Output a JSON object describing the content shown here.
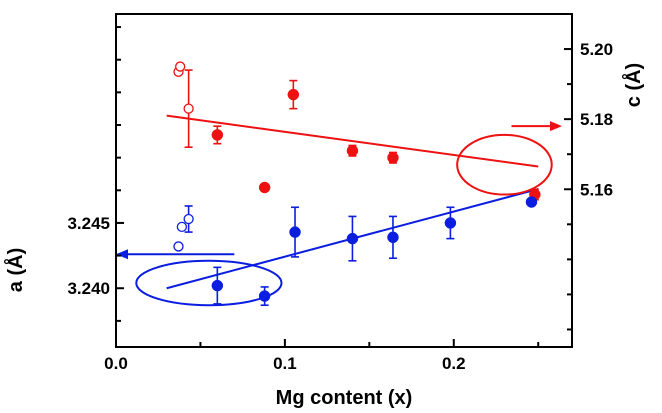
{
  "chart_data": {
    "type": "scatter",
    "title": "",
    "xlabel": "Mg content (x)",
    "ylabel_left": "a (Å)",
    "ylabel_right": "c (Å)",
    "xlim": [
      0.0,
      0.27
    ],
    "ylim_left": [
      3.2355,
      3.261
    ],
    "ylim_right": [
      5.115,
      5.21
    ],
    "x_ticks": [
      0.0,
      0.1,
      0.2
    ],
    "x_tick_labels": [
      "0.0",
      "0.1",
      "0.2"
    ],
    "y_left_ticks": [
      3.24,
      3.245
    ],
    "y_left_tick_labels": [
      "3.240",
      "3.245"
    ],
    "y_right_ticks": [
      5.16,
      5.18,
      5.2
    ],
    "y_right_tick_labels": [
      "5.16",
      "5.18",
      "5.20"
    ],
    "grid": false,
    "colors": {
      "a_series": "#0a1de0",
      "c_series": "#ee1111",
      "axis": "#000000"
    },
    "series": [
      {
        "axis": "right",
        "color": "#ee1111",
        "marker": "filled-circle",
        "points": [
          {
            "x": 0.06,
            "y": 5.1755,
            "err": 0.0025
          },
          {
            "x": 0.088,
            "y": 5.1605,
            "err": null
          },
          {
            "x": 0.105,
            "y": 5.187,
            "err": 0.004
          },
          {
            "x": 0.14,
            "y": 5.171,
            "err": 0.0015
          },
          {
            "x": 0.164,
            "y": 5.169,
            "err": 0.0015
          },
          {
            "x": 0.248,
            "y": 5.1585,
            "err": 0.0015
          }
        ]
      },
      {
        "axis": "right",
        "color": "#ee1111",
        "marker": "open-circle",
        "points": [
          {
            "x": 0.037,
            "y": 5.1935,
            "err": null
          },
          {
            "x": 0.038,
            "y": 5.195,
            "err": null
          },
          {
            "x": 0.043,
            "y": 5.183,
            "err": 0.011
          }
        ]
      },
      {
        "axis": "left",
        "color": "#0a1de0",
        "marker": "filled-circle",
        "points": [
          {
            "x": 0.06,
            "y": 3.2402,
            "err": 0.0014
          },
          {
            "x": 0.088,
            "y": 3.2394,
            "err": 0.0007
          },
          {
            "x": 0.106,
            "y": 3.2443,
            "err": 0.0019
          },
          {
            "x": 0.14,
            "y": 3.2438,
            "err": 0.0017
          },
          {
            "x": 0.164,
            "y": 3.2439,
            "err": 0.0016
          },
          {
            "x": 0.198,
            "y": 3.245,
            "err": 0.0012
          },
          {
            "x": 0.246,
            "y": 3.2466,
            "err": null
          }
        ]
      },
      {
        "axis": "left",
        "color": "#0a1de0",
        "marker": "open-circle",
        "points": [
          {
            "x": 0.037,
            "y": 3.2432,
            "err": null
          },
          {
            "x": 0.039,
            "y": 3.2447,
            "err": null
          },
          {
            "x": 0.043,
            "y": 3.2453,
            "err": 0.001
          }
        ]
      }
    ],
    "fit_lines": [
      {
        "axis": "right",
        "color": "#ee1111",
        "x": [
          0.03,
          0.25
        ],
        "y": [
          5.181,
          5.1665
        ]
      },
      {
        "axis": "left",
        "color": "#0a1de0",
        "x": [
          0.03,
          0.25
        ],
        "y": [
          3.24,
          3.2476
        ]
      }
    ],
    "annotations": [
      {
        "kind": "ellipse-arrow",
        "color": "#ee1111",
        "axis": "right",
        "cx": 0.23,
        "cy": 5.167,
        "rx": 0.028,
        "ry": 0.0085,
        "arrow_to": "right-axis",
        "arrow_y": 5.178
      },
      {
        "kind": "ellipse-arrow",
        "color": "#0a1de0",
        "axis": "left",
        "cx": 0.055,
        "cy": 3.2404,
        "rx": 0.043,
        "ry": 0.0017,
        "arrow_to": "left-axis",
        "arrow_y": 3.2426
      }
    ]
  }
}
